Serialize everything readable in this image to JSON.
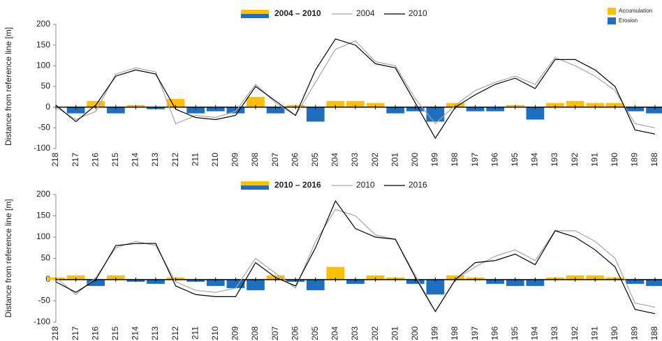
{
  "chart_data": [
    {
      "type": "line",
      "y_label": "Distance from  reference line [m]",
      "x": [
        218,
        217,
        216,
        215,
        214,
        213,
        212,
        211,
        210,
        209,
        208,
        207,
        206,
        205,
        204,
        203,
        202,
        201,
        200,
        199,
        198,
        197,
        196,
        195,
        194,
        193,
        192,
        191,
        190,
        189,
        188
      ],
      "xlim": [
        218,
        187.65
      ],
      "xticks": [
        218,
        217,
        216,
        215,
        214,
        213,
        212,
        211,
        210,
        209,
        208,
        207,
        206,
        205,
        204,
        203,
        202,
        201,
        200,
        199,
        198,
        197,
        196,
        195,
        194,
        193,
        192,
        191,
        190,
        189,
        188
      ],
      "ylim": [
        -100,
        200
      ],
      "yticks": [
        -100,
        -50,
        0,
        50,
        100,
        150,
        200
      ],
      "legend_extra": [
        {
          "name": "Accumulation",
          "color": "#ffc000"
        },
        {
          "name": "Erosion",
          "color": "#1f6fc0"
        }
      ],
      "series": [
        {
          "name": "2004 – 2010",
          "kind": "fill",
          "colors": [
            "#ffc000",
            "#1f6fc0"
          ],
          "values": [
            0,
            -15,
            15,
            -15,
            5,
            -5,
            20,
            -15,
            -10,
            -15,
            25,
            -15,
            5,
            -35,
            15,
            15,
            10,
            -15,
            -10,
            -35,
            10,
            -10,
            -10,
            5,
            -30,
            10,
            15,
            10,
            10,
            -10,
            -15
          ]
        },
        {
          "name": "2004",
          "kind": "line",
          "color": "#a6a6a6",
          "values": [
            0,
            -30,
            -10,
            80,
            95,
            85,
            -40,
            -20,
            -25,
            -10,
            55,
            10,
            -20,
            60,
            140,
            160,
            110,
            100,
            20,
            -40,
            5,
            40,
            60,
            75,
            55,
            120,
            100,
            75,
            40,
            -40,
            -50
          ]
        },
        {
          "name": "2010",
          "kind": "line",
          "color": "#000000",
          "values": [
            5,
            -35,
            5,
            75,
            90,
            80,
            -5,
            -25,
            -30,
            -20,
            50,
            15,
            -20,
            90,
            165,
            150,
            105,
            95,
            10,
            -75,
            0,
            30,
            55,
            70,
            45,
            115,
            115,
            90,
            50,
            -55,
            -65
          ]
        }
      ]
    },
    {
      "type": "line",
      "y_label": "Distance from  reference line [m]",
      "x": [
        218,
        217,
        216,
        215,
        214,
        213,
        212,
        211,
        210,
        209,
        208,
        207,
        206,
        205,
        204,
        203,
        202,
        201,
        200,
        199,
        198,
        197,
        196,
        195,
        194,
        193,
        192,
        191,
        190,
        189,
        188
      ],
      "xlim": [
        218,
        187.65
      ],
      "xticks": [
        218,
        217,
        216,
        215,
        214,
        213,
        212,
        211,
        210,
        209,
        208,
        207,
        206,
        205,
        204,
        203,
        202,
        201,
        200,
        199,
        198,
        197,
        196,
        195,
        194,
        193,
        192,
        191,
        190,
        189,
        188
      ],
      "ylim": [
        -100,
        200
      ],
      "yticks": [
        -100,
        -50,
        0,
        50,
        100,
        150,
        200
      ],
      "series": [
        {
          "name": "2010 – 2016",
          "kind": "fill",
          "colors": [
            "#ffc000",
            "#1f6fc0"
          ],
          "values": [
            5,
            10,
            -15,
            10,
            -5,
            -10,
            5,
            -5,
            -15,
            -20,
            -25,
            10,
            -5,
            -25,
            30,
            -10,
            10,
            5,
            -10,
            -35,
            10,
            5,
            -10,
            -15,
            -15,
            5,
            10,
            10,
            5,
            -10,
            -15
          ]
        },
        {
          "name": "2010",
          "kind": "line",
          "color": "#a6a6a6",
          "values": [
            5,
            -35,
            5,
            75,
            90,
            80,
            -5,
            -25,
            -30,
            -20,
            50,
            15,
            -20,
            90,
            165,
            150,
            105,
            95,
            10,
            -75,
            0,
            30,
            55,
            70,
            45,
            115,
            115,
            90,
            50,
            -55,
            -65
          ]
        },
        {
          "name": "2016",
          "kind": "line",
          "color": "#000000",
          "values": [
            -5,
            -30,
            0,
            80,
            85,
            85,
            -15,
            -35,
            -40,
            -40,
            40,
            5,
            -15,
            75,
            185,
            120,
            100,
            95,
            5,
            -75,
            0,
            40,
            45,
            60,
            35,
            115,
            100,
            70,
            30,
            -70,
            -80
          ]
        }
      ]
    }
  ]
}
